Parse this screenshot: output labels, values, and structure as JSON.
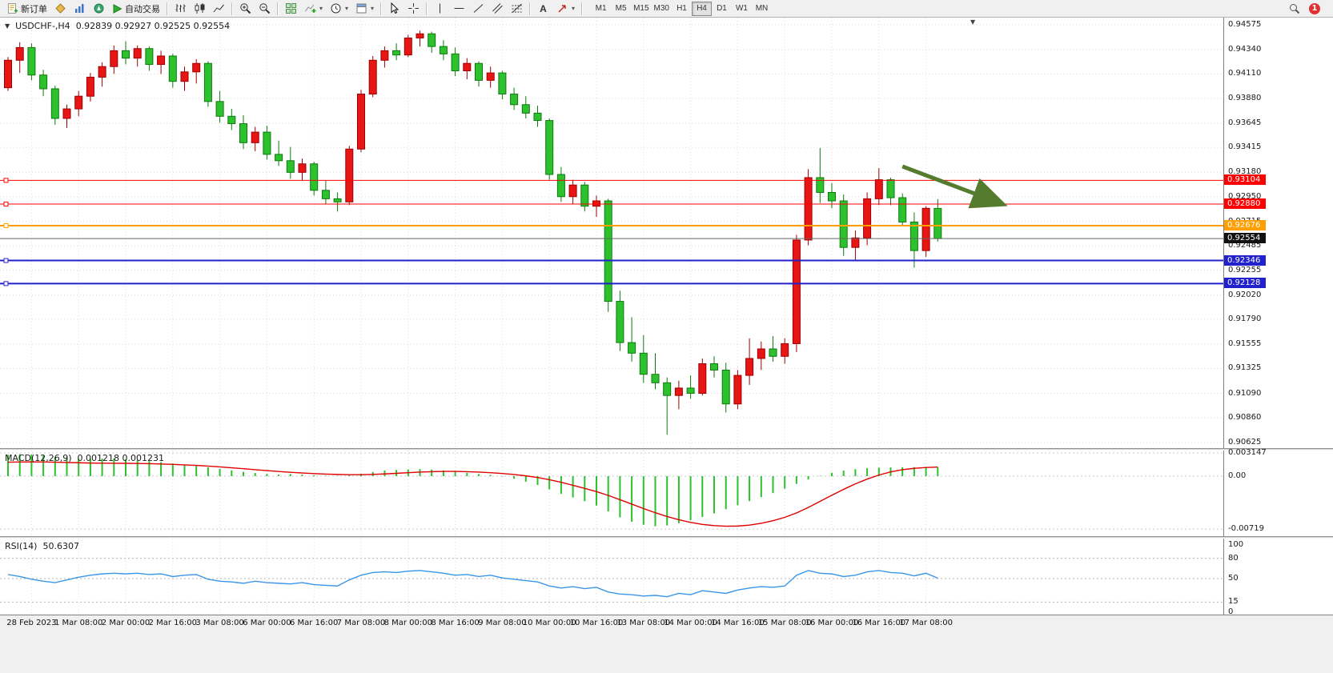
{
  "toolbar": {
    "new_order_label": "新订单",
    "autotrading_label": "自动交易",
    "text_tool_glyph": "A",
    "timeframes": [
      "M1",
      "M5",
      "M15",
      "M30",
      "H1",
      "H4",
      "D1",
      "W1",
      "MN"
    ],
    "active_timeframe": "H4",
    "notification_count": "1"
  },
  "chart": {
    "symbol_period": "USDCHF-,H4",
    "ohlc": "0.92839 0.92927 0.92525 0.92554"
  },
  "chart_data": {
    "type": "candlestick",
    "symbol": "USDCHF",
    "timeframe": "H4",
    "y_axis": {
      "min": 0.90625,
      "max": 0.94575,
      "ticks": [
        "0.94575",
        "0.94340",
        "0.94110",
        "0.93880",
        "0.93645",
        "0.93415",
        "0.93180",
        "0.92950",
        "0.92715",
        "0.92485",
        "0.92255",
        "0.92020",
        "0.91790",
        "0.91555",
        "0.91325",
        "0.91090",
        "0.90860",
        "0.90625"
      ]
    },
    "x_axis": {
      "labels": [
        "28 Feb 2023",
        "1 Mar 08:00",
        "2 Mar 00:00",
        "2 Mar 16:00",
        "3 Mar 08:00",
        "6 Mar 00:00",
        "6 Mar 16:00",
        "7 Mar 08:00",
        "8 Mar 00:00",
        "8 Mar 16:00",
        "9 Mar 08:00",
        "10 Mar 00:00",
        "10 Mar 16:00",
        "13 Mar 08:00",
        "14 Mar 00:00",
        "14 Mar 16:00",
        "15 Mar 08:00",
        "16 Mar 00:00",
        "16 Mar 16:00",
        "17 Mar 08:00"
      ],
      "start_index": 2,
      "step": 4
    },
    "candles": [
      [
        0.9398,
        0.9427,
        0.9395,
        0.9424
      ],
      [
        0.9424,
        0.9441,
        0.9412,
        0.9436
      ],
      [
        0.9436,
        0.944,
        0.9405,
        0.941
      ],
      [
        0.941,
        0.9415,
        0.939,
        0.9397
      ],
      [
        0.9397,
        0.94,
        0.9363,
        0.9369
      ],
      [
        0.9369,
        0.9382,
        0.936,
        0.9378
      ],
      [
        0.9378,
        0.9395,
        0.9371,
        0.939
      ],
      [
        0.939,
        0.9412,
        0.9385,
        0.9408
      ],
      [
        0.9408,
        0.9422,
        0.9399,
        0.9418
      ],
      [
        0.9418,
        0.9438,
        0.9411,
        0.9433
      ],
      [
        0.9433,
        0.9442,
        0.942,
        0.9426
      ],
      [
        0.9426,
        0.9438,
        0.9418,
        0.9435
      ],
      [
        0.9435,
        0.9437,
        0.9414,
        0.942
      ],
      [
        0.942,
        0.9433,
        0.9411,
        0.9428
      ],
      [
        0.9428,
        0.943,
        0.9398,
        0.9404
      ],
      [
        0.9404,
        0.9418,
        0.9395,
        0.9413
      ],
      [
        0.9413,
        0.9425,
        0.9402,
        0.9421
      ],
      [
        0.9421,
        0.9423,
        0.938,
        0.9385
      ],
      [
        0.9385,
        0.9395,
        0.9365,
        0.9371
      ],
      [
        0.9371,
        0.9378,
        0.9358,
        0.9364
      ],
      [
        0.9364,
        0.9372,
        0.934,
        0.9346
      ],
      [
        0.9346,
        0.9361,
        0.9338,
        0.9356
      ],
      [
        0.9356,
        0.9362,
        0.933,
        0.9335
      ],
      [
        0.9335,
        0.9348,
        0.9324,
        0.9329
      ],
      [
        0.9329,
        0.9342,
        0.9312,
        0.9318
      ],
      [
        0.9318,
        0.9331,
        0.931,
        0.9326
      ],
      [
        0.9326,
        0.9328,
        0.9296,
        0.9301
      ],
      [
        0.9301,
        0.931,
        0.9288,
        0.9293
      ],
      [
        0.9293,
        0.9299,
        0.9281,
        0.929
      ],
      [
        0.929,
        0.9343,
        0.9287,
        0.934
      ],
      [
        0.934,
        0.9396,
        0.9337,
        0.9392
      ],
      [
        0.9392,
        0.9428,
        0.9389,
        0.9424
      ],
      [
        0.9424,
        0.9437,
        0.9417,
        0.9433
      ],
      [
        0.9433,
        0.944,
        0.9424,
        0.9429
      ],
      [
        0.9429,
        0.9448,
        0.9427,
        0.9445
      ],
      [
        0.9445,
        0.9452,
        0.9437,
        0.9449
      ],
      [
        0.9449,
        0.9451,
        0.9431,
        0.9437
      ],
      [
        0.9437,
        0.9443,
        0.9424,
        0.943
      ],
      [
        0.943,
        0.9436,
        0.9409,
        0.9414
      ],
      [
        0.9414,
        0.9426,
        0.9406,
        0.9421
      ],
      [
        0.9421,
        0.9423,
        0.9399,
        0.9405
      ],
      [
        0.9405,
        0.9418,
        0.9398,
        0.9412
      ],
      [
        0.9412,
        0.9414,
        0.9387,
        0.9392
      ],
      [
        0.9392,
        0.9398,
        0.9377,
        0.9382
      ],
      [
        0.9382,
        0.939,
        0.9369,
        0.9374
      ],
      [
        0.9374,
        0.9381,
        0.9361,
        0.9367
      ],
      [
        0.9367,
        0.9369,
        0.9311,
        0.9316
      ],
      [
        0.9316,
        0.9323,
        0.929,
        0.9295
      ],
      [
        0.9295,
        0.9311,
        0.9288,
        0.9306
      ],
      [
        0.9306,
        0.9309,
        0.9281,
        0.9286
      ],
      [
        0.9286,
        0.9296,
        0.9276,
        0.9291
      ],
      [
        0.9291,
        0.9293,
        0.9186,
        0.9196
      ],
      [
        0.9196,
        0.9206,
        0.9149,
        0.9157
      ],
      [
        0.9157,
        0.9181,
        0.9139,
        0.9147
      ],
      [
        0.9147,
        0.9164,
        0.9119,
        0.9127
      ],
      [
        0.9127,
        0.9147,
        0.9113,
        0.9119
      ],
      [
        0.9119,
        0.9124,
        0.907,
        0.9107
      ],
      [
        0.9107,
        0.9121,
        0.9094,
        0.9114
      ],
      [
        0.9114,
        0.9126,
        0.9104,
        0.9109
      ],
      [
        0.9109,
        0.9142,
        0.9107,
        0.9137
      ],
      [
        0.9137,
        0.9144,
        0.9124,
        0.9131
      ],
      [
        0.9131,
        0.9138,
        0.9091,
        0.9099
      ],
      [
        0.9099,
        0.9131,
        0.9094,
        0.9126
      ],
      [
        0.9126,
        0.9161,
        0.9117,
        0.9142
      ],
      [
        0.9142,
        0.9158,
        0.9131,
        0.9151
      ],
      [
        0.9151,
        0.9163,
        0.9139,
        0.9144
      ],
      [
        0.9144,
        0.9161,
        0.9137,
        0.9156
      ],
      [
        0.9156,
        0.9259,
        0.9148,
        0.9254
      ],
      [
        0.9254,
        0.9321,
        0.9249,
        0.9313
      ],
      [
        0.9313,
        0.9341,
        0.9289,
        0.9299
      ],
      [
        0.9299,
        0.9308,
        0.9284,
        0.9291
      ],
      [
        0.9291,
        0.9297,
        0.9239,
        0.9247
      ],
      [
        0.9247,
        0.9263,
        0.9234,
        0.9256
      ],
      [
        0.9256,
        0.9299,
        0.9249,
        0.9293
      ],
      [
        0.9293,
        0.9322,
        0.9287,
        0.9311
      ],
      [
        0.9311,
        0.9313,
        0.9287,
        0.9294
      ],
      [
        0.9294,
        0.9298,
        0.9267,
        0.9271
      ],
      [
        0.9271,
        0.928,
        0.9228,
        0.9244
      ],
      [
        0.9244,
        0.9286,
        0.9238,
        0.9284
      ],
      [
        0.92839,
        0.92927,
        0.92525,
        0.92554
      ]
    ],
    "lines": [
      {
        "price": 0.93104,
        "label": "0.93104",
        "color": "#ff0000",
        "width": 1
      },
      {
        "price": 0.9288,
        "label": "0.92880",
        "color": "#ff0000",
        "width": 1
      },
      {
        "price": 0.92676,
        "label": "0.92676",
        "color": "#ff9f00",
        "width": 2
      },
      {
        "price": 0.92346,
        "label": "0.92346",
        "color": "#2222cc",
        "width": 2
      },
      {
        "price": 0.92128,
        "label": "0.92128",
        "color": "#2222cc",
        "width": 2
      }
    ],
    "current_price": {
      "value": 0.92554,
      "label": "0.92554"
    },
    "arrow": {
      "from": {
        "index": 76,
        "price": 0.93236
      },
      "to": {
        "index": 84.3,
        "price": 0.92888
      }
    },
    "macd": {
      "label": "MACD(12,26,9)",
      "values_text": "0.001218 0.001231",
      "scale_labels": [
        "0.003147",
        "0.00",
        "-0.00719"
      ],
      "histogram": [
        0.0029,
        0.003,
        0.00295,
        0.0028,
        0.00262,
        0.00248,
        0.00238,
        0.00235,
        0.00238,
        0.0024,
        0.0023,
        0.0022,
        0.00205,
        0.0019,
        0.00172,
        0.00155,
        0.0014,
        0.0012,
        0.00098,
        0.00078,
        0.00058,
        0.00042,
        0.0003,
        0.00022,
        0.00028,
        0.0002,
        0.00012,
        6e-05,
        4e-05,
        0.0001,
        0.00032,
        0.00056,
        0.00076,
        0.00084,
        0.00092,
        0.00096,
        0.0009,
        0.00078,
        0.0006,
        0.00045,
        0.00028,
        0.00015,
        -5e-05,
        -0.00035,
        -0.00075,
        -0.0012,
        -0.0018,
        -0.0024,
        -0.0029,
        -0.0034,
        -0.004,
        -0.0048,
        -0.0056,
        -0.0062,
        -0.0066,
        -0.0068,
        -0.0067,
        -0.0064,
        -0.006,
        -0.00555,
        -0.00505,
        -0.0045,
        -0.00395,
        -0.0034,
        -0.00285,
        -0.0023,
        -0.0017,
        -0.00105,
        -0.00045,
        5e-05,
        0.00045,
        0.00075,
        0.00095,
        0.00108,
        0.00115,
        0.00119,
        0.00121,
        0.00122,
        0.00122,
        0.001218
      ],
      "signal": [
        0.0019,
        0.00192,
        0.00193,
        0.00192,
        0.0019,
        0.00186,
        0.00182,
        0.00178,
        0.00176,
        0.00175,
        0.00174,
        0.00172,
        0.00169,
        0.00165,
        0.0016,
        0.00153,
        0.00146,
        0.00137,
        0.00126,
        0.00114,
        0.00101,
        0.00088,
        0.00075,
        0.00063,
        0.00052,
        0.00043,
        0.00035,
        0.00028,
        0.00023,
        0.0002,
        0.0002,
        0.00024,
        0.0003,
        0.00038,
        0.00047,
        0.00055,
        0.00061,
        0.00064,
        0.00064,
        0.00061,
        0.00055,
        0.00047,
        0.00036,
        0.00022,
        4e-05,
        -0.00018,
        -0.00048,
        -0.00084,
        -0.00124,
        -0.00166,
        -0.0021,
        -0.00262,
        -0.0032,
        -0.0038,
        -0.0044,
        -0.00497,
        -0.00548,
        -0.00592,
        -0.00628,
        -0.00655,
        -0.00672,
        -0.0068,
        -0.00678,
        -0.00665,
        -0.0064,
        -0.00605,
        -0.0056,
        -0.005,
        -0.00425,
        -0.00342,
        -0.0026,
        -0.0018,
        -0.00105,
        -0.0004,
        0.00015,
        0.00058,
        0.00088,
        0.00106,
        0.00117,
        0.001231
      ]
    },
    "rsi": {
      "label": "RSI(14)",
      "value_text": "50.6307",
      "levels": [
        80,
        50,
        15
      ],
      "scale_labels": [
        "100",
        "80",
        "50",
        "15",
        "0"
      ],
      "values": [
        56,
        53,
        49,
        46,
        44,
        48,
        52,
        55,
        57,
        58,
        57,
        58,
        56,
        57,
        53,
        55,
        56,
        49,
        46,
        45,
        43,
        46,
        44,
        43,
        42,
        44,
        41,
        40,
        39,
        48,
        55,
        59,
        60,
        59,
        61,
        62,
        60,
        58,
        55,
        56,
        53,
        55,
        51,
        49,
        47,
        45,
        39,
        36,
        38,
        35,
        37,
        30,
        27,
        26,
        24,
        25,
        23,
        28,
        26,
        32,
        30,
        28,
        33,
        36,
        38,
        37,
        39,
        55,
        62,
        58,
        57,
        53,
        55,
        60,
        62,
        59,
        58,
        54,
        58,
        50.6307
      ]
    }
  },
  "colors": {
    "candle_up": "#e81515",
    "candle_up_border": "#9e0000",
    "candle_down": "#2ec12e",
    "candle_down_border": "#0e7a0e",
    "grid": "#dcdcdc",
    "macd_histogram": "#2ec12e",
    "macd_signal": "#e00000",
    "rsi_line": "#3b96e8",
    "arrow": "#557b2f",
    "current_price_line": "#666666",
    "current_price_tag": "#111111"
  }
}
